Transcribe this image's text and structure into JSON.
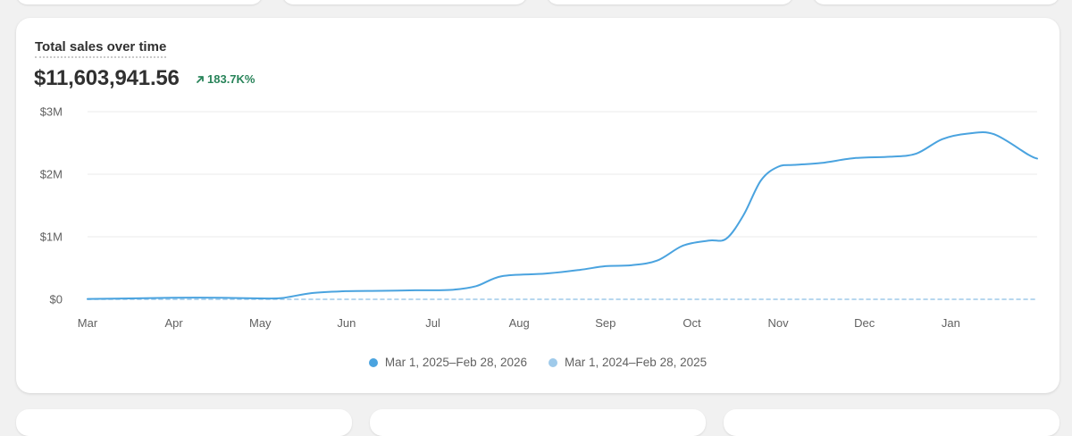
{
  "card": {
    "title": "Total sales over time",
    "total": "$11,603,941.56",
    "change": "183.7K%",
    "change_icon": "arrow-up-right-icon"
  },
  "colors": {
    "current": "#4aa3df",
    "previous": "#9fcaea",
    "positive": "#29845a"
  },
  "chart_data": {
    "type": "line",
    "title": "Total sales over time",
    "xlabel": "",
    "ylabel": "",
    "ylim": [
      0,
      3000000
    ],
    "y_ticks": [
      {
        "value": 0,
        "label": "$0"
      },
      {
        "value": 1000000,
        "label": "$1M"
      },
      {
        "value": 2000000,
        "label": "$2M"
      },
      {
        "value": 3000000,
        "label": "$3M"
      }
    ],
    "x_ticks": [
      "Mar",
      "Apr",
      "May",
      "Jun",
      "Jul",
      "Aug",
      "Sep",
      "Oct",
      "Nov",
      "Dec",
      "Jan"
    ],
    "x_range": [
      0,
      11
    ],
    "grid": true,
    "legend_position": "bottom-center",
    "series": [
      {
        "name": "Mar 1, 2025–Feb 28, 2026",
        "color": "#4aa3df",
        "style": "solid",
        "points": [
          [
            0,
            5000
          ],
          [
            0.5,
            15000
          ],
          [
            1,
            25000
          ],
          [
            1.5,
            25000
          ],
          [
            2,
            15000
          ],
          [
            2.25,
            20000
          ],
          [
            2.6,
            100000
          ],
          [
            3,
            130000
          ],
          [
            3.4,
            135000
          ],
          [
            3.8,
            145000
          ],
          [
            4.2,
            150000
          ],
          [
            4.5,
            210000
          ],
          [
            4.8,
            370000
          ],
          [
            5.3,
            410000
          ],
          [
            5.7,
            470000
          ],
          [
            6,
            530000
          ],
          [
            6.3,
            545000
          ],
          [
            6.6,
            620000
          ],
          [
            6.9,
            860000
          ],
          [
            7.2,
            940000
          ],
          [
            7.4,
            970000
          ],
          [
            7.6,
            1350000
          ],
          [
            7.8,
            1900000
          ],
          [
            8,
            2120000
          ],
          [
            8.2,
            2150000
          ],
          [
            8.5,
            2180000
          ],
          [
            8.9,
            2260000
          ],
          [
            9.3,
            2280000
          ],
          [
            9.6,
            2330000
          ],
          [
            9.9,
            2560000
          ],
          [
            10.2,
            2650000
          ],
          [
            10.5,
            2640000
          ],
          [
            10.9,
            2310000
          ],
          [
            11,
            2250000
          ]
        ]
      },
      {
        "name": "Mar 1, 2024–Feb 28, 2025",
        "color": "#9fcaea",
        "style": "dashed",
        "points": [
          [
            0,
            0
          ],
          [
            11,
            0
          ]
        ]
      }
    ]
  }
}
